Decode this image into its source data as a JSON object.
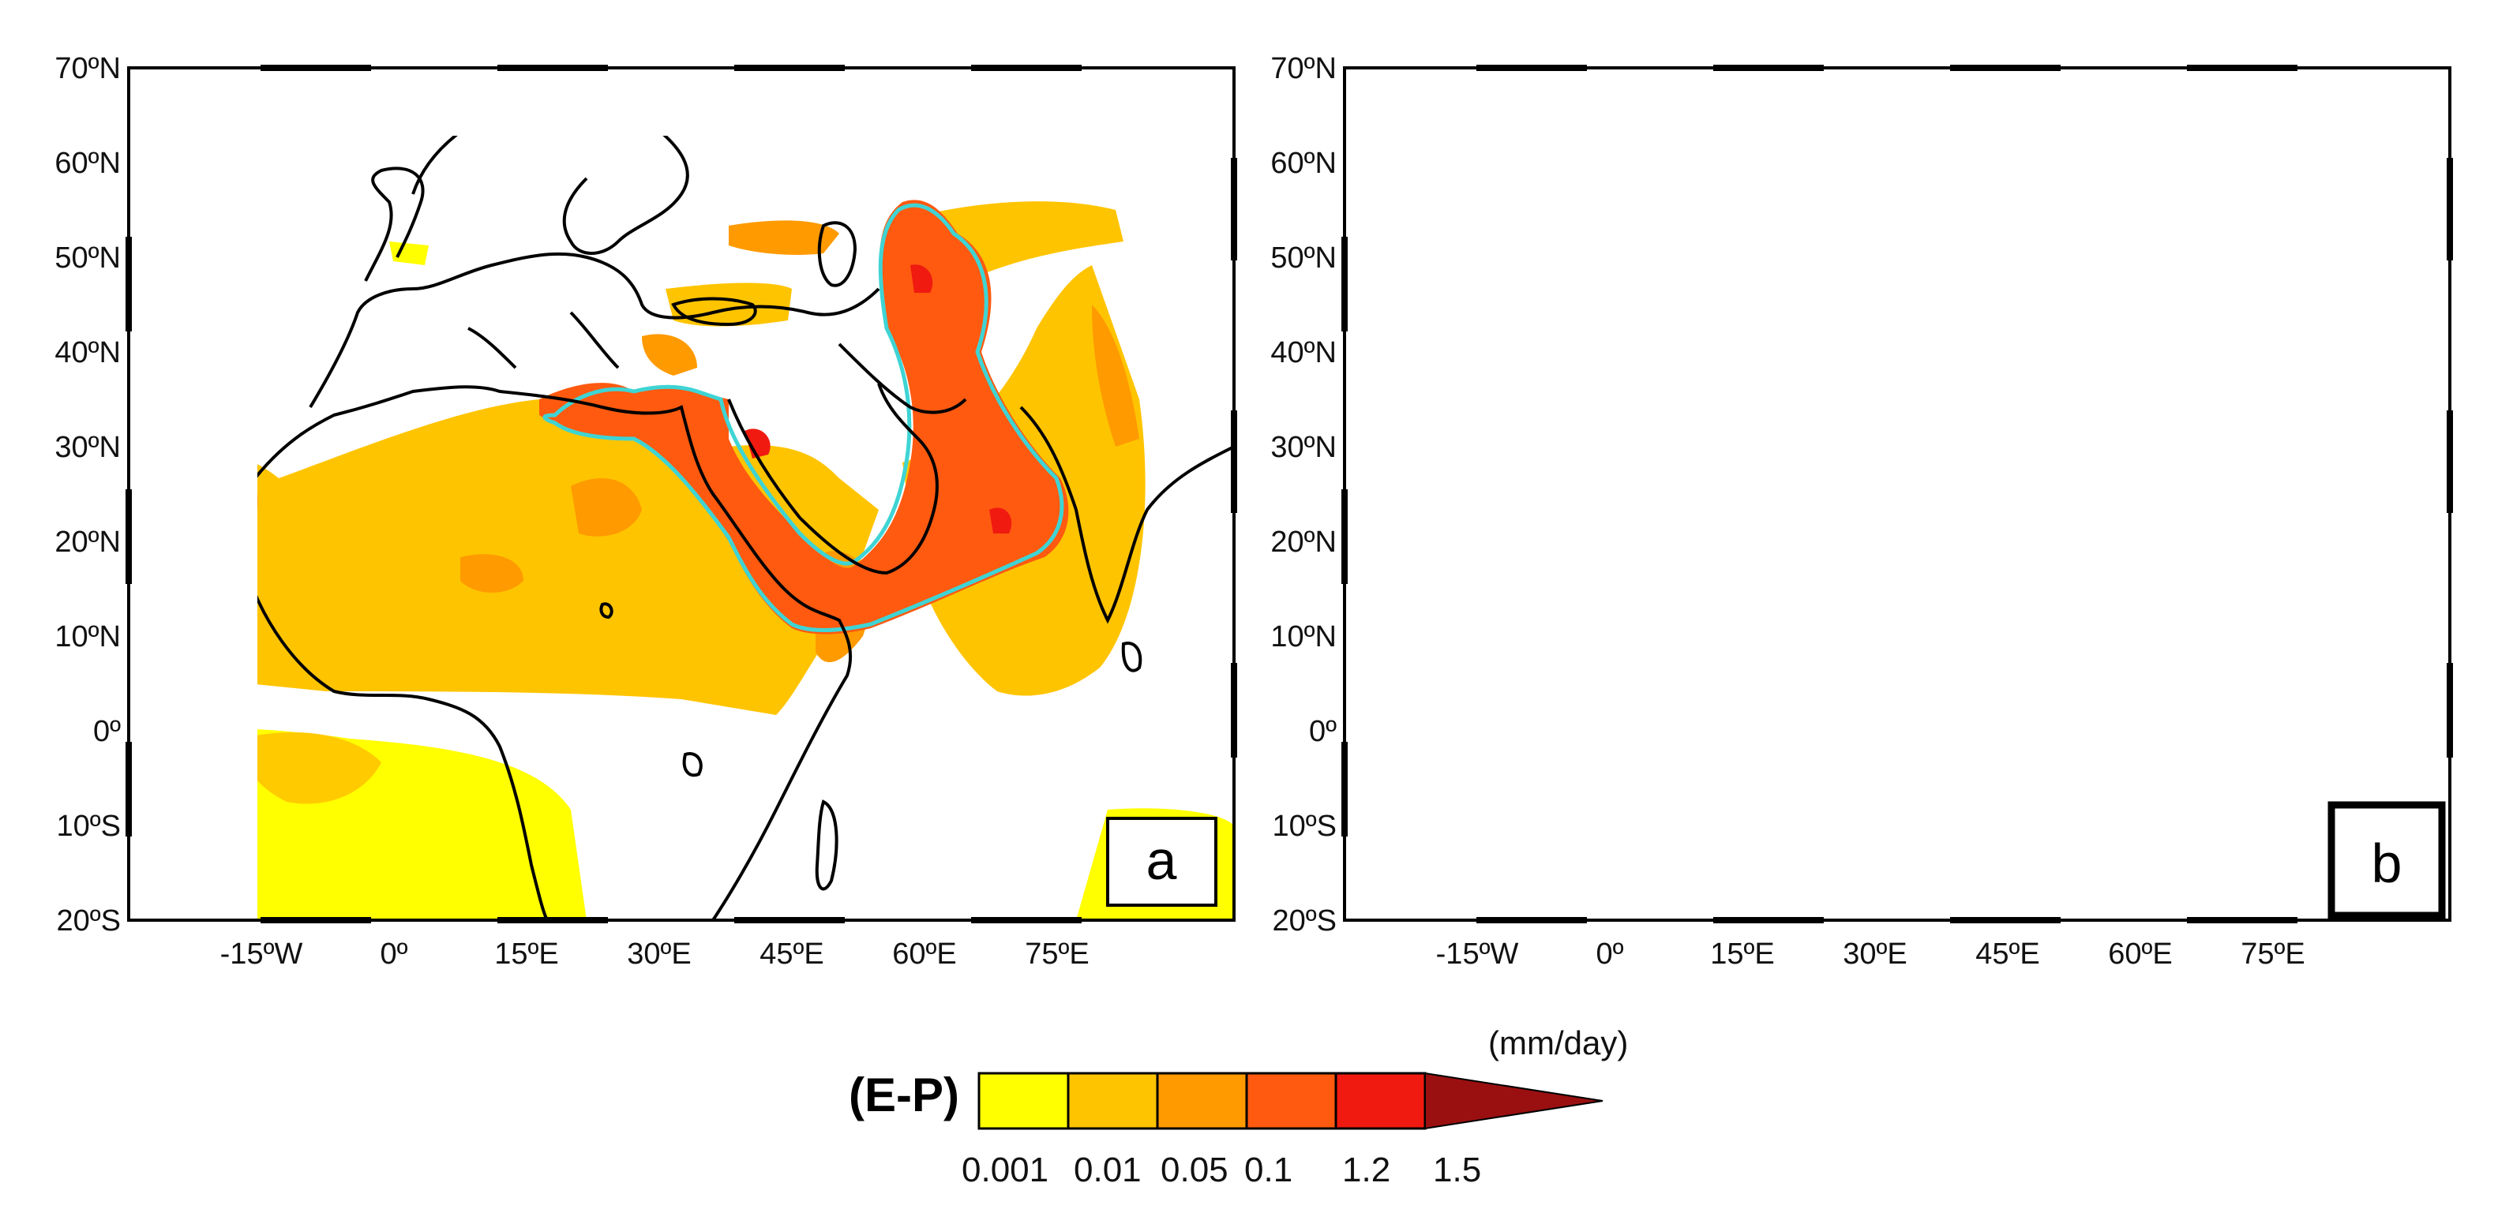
{
  "colors": {
    "bin1": "#ffff00",
    "bin2": "#ffc400",
    "bin3": "#ff9a00",
    "bin4": "#ff5a10",
    "bin5": "#f01a10",
    "bin6": "#9a1010",
    "contour": "#3fd4d4",
    "coast": "#000000"
  },
  "map": {
    "lat_labels": [
      "70ºN",
      "60ºN",
      "50ºN",
      "40ºN",
      "30ºN",
      "20ºN",
      "10ºN",
      "0º",
      "10ºS",
      "20ºS"
    ],
    "lon_labels": [
      "-15ºW",
      "0º",
      "15ºE",
      "30ºE",
      "45ºE",
      "60ºE",
      "75ºE"
    ],
    "lat_range": [
      -20,
      70
    ],
    "lon_range": [
      -30,
      95
    ]
  },
  "panels": [
    {
      "letter": "a"
    },
    {
      "letter": "b"
    }
  ],
  "legend": {
    "title": "(E-P)",
    "unit": "(mm/day)",
    "bin_labels": [
      "0.001",
      "0.01",
      "0.05",
      "0.1",
      "1.2",
      "1.5"
    ]
  }
}
